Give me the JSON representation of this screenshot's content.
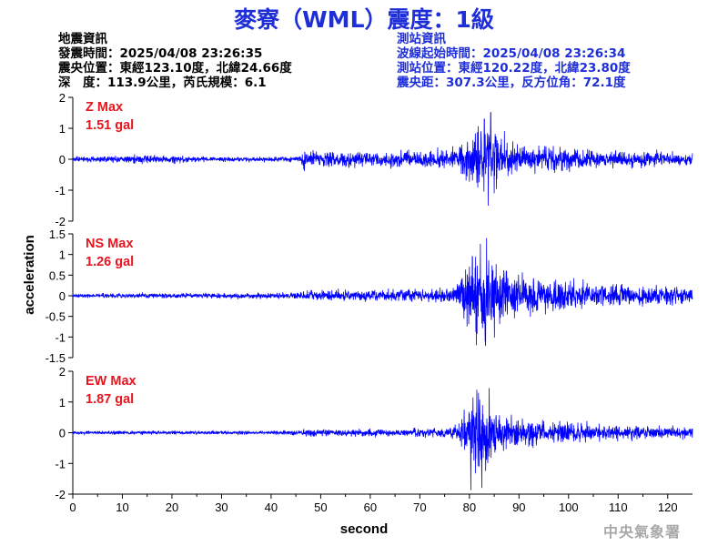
{
  "title": "麥寮（WML）震度：1級",
  "quake_info": {
    "heading": "地震資訊",
    "origin_time": "發震時間：2025/04/08 23:26:35",
    "epicenter": "震央位置：東經123.10度，北緯24.66度",
    "depth_magnitude": "深　度：113.9公里，芮氏規模：6.1"
  },
  "station_info": {
    "heading": "測站資訊",
    "waveform_start": "波線起始時間：2025/04/08 23:26:34",
    "station_location": "測站位置：東經120.22度，北緯23.80度",
    "distance_azimuth": "震央距：307.3公里，反方位角：72.1度"
  },
  "credit": "中央氣象署",
  "colors": {
    "trace": "#0000ff",
    "title": "#1f2fd8",
    "max_label": "#e8141e",
    "credit": "#a9a9a9"
  },
  "chart_data": {
    "type": "line",
    "xlabel": "second",
    "ylabel": "acceleration",
    "xlim": [
      0,
      125
    ],
    "xticks": [
      0,
      10,
      20,
      30,
      40,
      50,
      60,
      70,
      80,
      90,
      100,
      110,
      120
    ],
    "panels": [
      {
        "name": "Z",
        "max_label": "Z Max",
        "max_value": "1.51 gal",
        "ylim": [
          -2,
          2
        ],
        "yticks": [
          -2,
          -1,
          0,
          1,
          2
        ],
        "envelope": [
          [
            0,
            0.05
          ],
          [
            0.7,
            0.06
          ],
          [
            5,
            0.08
          ],
          [
            10,
            0.1
          ],
          [
            15,
            0.11
          ],
          [
            20,
            0.1
          ],
          [
            25,
            0.08
          ],
          [
            30,
            0.07
          ],
          [
            35,
            0.06
          ],
          [
            40,
            0.07
          ],
          [
            45,
            0.07
          ],
          [
            46,
            0.08
          ],
          [
            46.3,
            0.28
          ],
          [
            48,
            0.22
          ],
          [
            50,
            0.2
          ],
          [
            55,
            0.21
          ],
          [
            60,
            0.2
          ],
          [
            65,
            0.22
          ],
          [
            70,
            0.22
          ],
          [
            74,
            0.24
          ],
          [
            76,
            0.3
          ],
          [
            78,
            0.42
          ],
          [
            80,
            0.55
          ],
          [
            82,
            0.8
          ],
          [
            84,
            1.0
          ],
          [
            86,
            0.6
          ],
          [
            88,
            0.45
          ],
          [
            90,
            0.38
          ],
          [
            95,
            0.32
          ],
          [
            100,
            0.28
          ],
          [
            105,
            0.25
          ],
          [
            110,
            0.22
          ],
          [
            115,
            0.2
          ],
          [
            120,
            0.18
          ],
          [
            125,
            0.17
          ]
        ],
        "peaks": [
          [
            83,
            1.3
          ],
          [
            83.8,
            -1.5
          ],
          [
            85,
            -1.1
          ],
          [
            84.3,
            1.51
          ]
        ]
      },
      {
        "name": "NS",
        "max_label": "NS Max",
        "max_value": "1.26 gal",
        "ylim": [
          -1.5,
          1.5
        ],
        "yticks": [
          -1.5,
          -1,
          -0.5,
          0,
          0.5,
          1,
          1.5
        ],
        "envelope": [
          [
            0,
            0.04
          ],
          [
            10,
            0.05
          ],
          [
            20,
            0.05
          ],
          [
            30,
            0.05
          ],
          [
            40,
            0.06
          ],
          [
            46,
            0.06
          ],
          [
            46.3,
            0.11
          ],
          [
            50,
            0.1
          ],
          [
            60,
            0.11
          ],
          [
            70,
            0.12
          ],
          [
            76,
            0.14
          ],
          [
            78,
            0.3
          ],
          [
            79,
            0.55
          ],
          [
            80,
            0.7
          ],
          [
            82,
            0.9
          ],
          [
            83,
            0.95
          ],
          [
            85,
            0.7
          ],
          [
            88,
            0.5
          ],
          [
            90,
            0.42
          ],
          [
            95,
            0.3
          ],
          [
            100,
            0.28
          ],
          [
            105,
            0.25
          ],
          [
            110,
            0.22
          ],
          [
            115,
            0.2
          ],
          [
            120,
            0.18
          ],
          [
            125,
            0.17
          ]
        ],
        "peaks": [
          [
            82.2,
            1.26
          ],
          [
            81.4,
            -1.2
          ],
          [
            83.2,
            -1.1
          ],
          [
            80.6,
            0.95
          ]
        ]
      },
      {
        "name": "EW",
        "max_label": "EW Max",
        "max_value": "1.87 gal",
        "ylim": [
          -2,
          2
        ],
        "yticks": [
          -2,
          -1,
          0,
          1,
          2
        ],
        "envelope": [
          [
            0,
            0.04
          ],
          [
            10,
            0.05
          ],
          [
            20,
            0.05
          ],
          [
            30,
            0.05
          ],
          [
            40,
            0.05
          ],
          [
            46,
            0.06
          ],
          [
            46.3,
            0.1
          ],
          [
            50,
            0.1
          ],
          [
            60,
            0.1
          ],
          [
            70,
            0.11
          ],
          [
            76,
            0.14
          ],
          [
            78,
            0.3
          ],
          [
            79,
            0.6
          ],
          [
            80,
            0.85
          ],
          [
            82,
            1.0
          ],
          [
            84,
            0.85
          ],
          [
            86,
            0.55
          ],
          [
            88,
            0.45
          ],
          [
            90,
            0.38
          ],
          [
            95,
            0.3
          ],
          [
            100,
            0.26
          ],
          [
            105,
            0.23
          ],
          [
            110,
            0.2
          ],
          [
            115,
            0.18
          ],
          [
            120,
            0.16
          ],
          [
            125,
            0.15
          ]
        ],
        "peaks": [
          [
            80.3,
            -1.87
          ],
          [
            81.5,
            1.4
          ],
          [
            84,
            1.45
          ],
          [
            82.5,
            -1.8
          ]
        ]
      }
    ]
  }
}
